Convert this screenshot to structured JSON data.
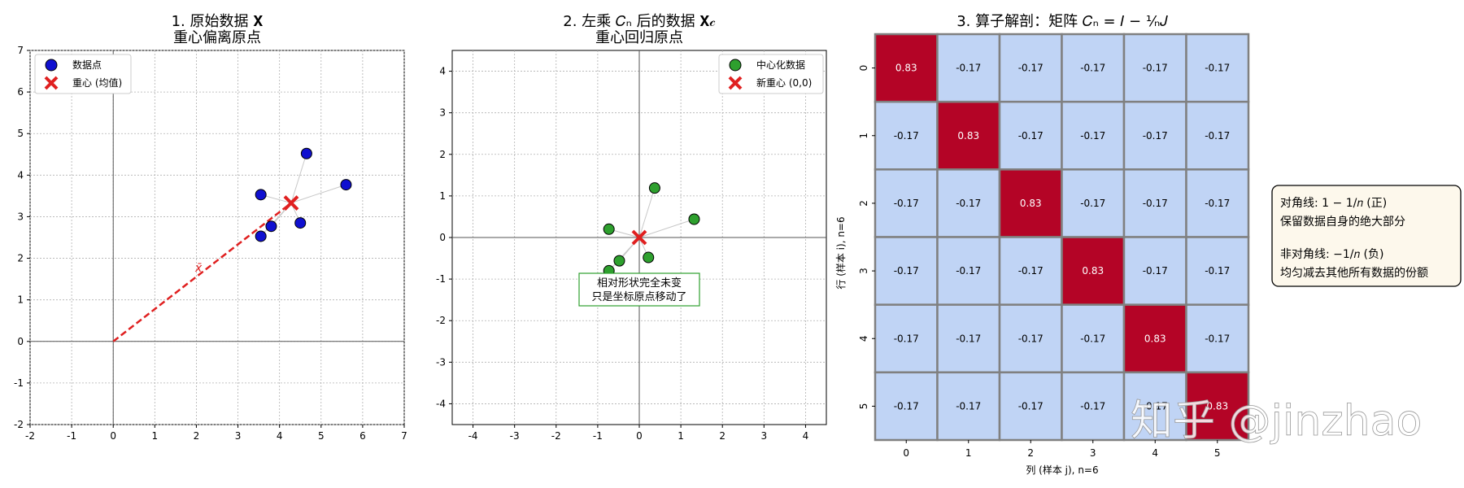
{
  "chart_data": [
    {
      "type": "scatter",
      "title_line1": "1. 原始数据 𝐗",
      "title_line2": "重心偏离原点",
      "xlim": [
        -2,
        7
      ],
      "ylim": [
        -2,
        7
      ],
      "xticks": [
        -2,
        -1,
        0,
        1,
        2,
        3,
        4,
        5,
        6,
        7
      ],
      "yticks": [
        -2,
        -1,
        0,
        1,
        2,
        3,
        4,
        5,
        6,
        7
      ],
      "grid": true,
      "legend_position": "top-left",
      "series": [
        {
          "name": "数据点",
          "color": "#1010d0",
          "x": [
            4.65,
            5.6,
            3.55,
            3.8,
            4.5,
            3.55
          ],
          "y": [
            4.52,
            3.77,
            3.53,
            2.77,
            2.85,
            2.53
          ]
        }
      ],
      "centroid": {
        "name": "重心 (均值)",
        "x": 4.28,
        "y": 3.33,
        "color": "#e02020"
      },
      "annotation": "x̄"
    },
    {
      "type": "scatter",
      "title_line1": "2. 左乘 𝐶ₙ 后的数据 𝐗𝒸",
      "title_line2": "重心回归原点",
      "xlim": [
        -4.5,
        4.5
      ],
      "ylim": [
        -4.5,
        4.5
      ],
      "xticks": [
        -4,
        -3,
        -2,
        -1,
        0,
        1,
        2,
        3,
        4
      ],
      "yticks": [
        -4,
        -3,
        -2,
        -1,
        0,
        1,
        2,
        3,
        4
      ],
      "grid": true,
      "legend_position": "top-right",
      "series": [
        {
          "name": "中心化数据",
          "color": "#2ea02e",
          "x": [
            0.37,
            1.32,
            -0.73,
            -0.48,
            0.22,
            -0.73
          ],
          "y": [
            1.19,
            0.44,
            0.2,
            -0.56,
            -0.48,
            -0.8
          ]
        }
      ],
      "centroid": {
        "name": "新重心 (0,0)",
        "x": 0,
        "y": 0,
        "color": "#e02020"
      },
      "annotation": [
        "相对形状完全未变",
        "只是坐标原点移动了"
      ]
    },
    {
      "type": "heatmap",
      "title": "3. 算子解剖：矩阵 𝐶ₙ = 𝐼 − ¹⁄ₙ𝐽",
      "rows": [
        0,
        1,
        2,
        3,
        4,
        5
      ],
      "cols": [
        0,
        1,
        2,
        3,
        4,
        5
      ],
      "xlabel": "列 (样本 j), n=6",
      "ylabel": "行 (样本 i), n=6",
      "values": [
        [
          0.83,
          -0.17,
          -0.17,
          -0.17,
          -0.17,
          -0.17
        ],
        [
          -0.17,
          0.83,
          -0.17,
          -0.17,
          -0.17,
          -0.17
        ],
        [
          -0.17,
          -0.17,
          0.83,
          -0.17,
          -0.17,
          -0.17
        ],
        [
          -0.17,
          -0.17,
          -0.17,
          0.83,
          -0.17,
          -0.17
        ],
        [
          -0.17,
          -0.17,
          -0.17,
          -0.17,
          0.83,
          -0.17
        ],
        [
          -0.17,
          -0.17,
          -0.17,
          -0.17,
          -0.17,
          0.83
        ]
      ],
      "labels": [
        [
          "0.83",
          "-0.17",
          "-0.17",
          "-0.17",
          "-0.17",
          "-0.17"
        ],
        [
          "-0.17",
          "0.83",
          "-0.17",
          "-0.17",
          "-0.17",
          "-0.17"
        ],
        [
          "-0.17",
          "-0.17",
          "0.83",
          "-0.17",
          "-0.17",
          "-0.17"
        ],
        [
          "-0.17",
          "-0.17",
          "-0.17",
          "0.83",
          "-0.17",
          "-0.17"
        ],
        [
          "-0.17",
          "-0.17",
          "-0.17",
          "-0.17",
          "0.83",
          "-0.17"
        ],
        [
          "-0.17",
          "-0.17",
          "-0.17",
          "-0.17",
          "-0.17",
          "0.83"
        ]
      ],
      "colors": {
        "positive": "#b40426",
        "negative": "#c0d4f5",
        "border": "#808080"
      },
      "note": {
        "line1": "对角线: 1 − 1/𝑛 (正)",
        "line2": "保留数据自身的绝大部分",
        "line3": "非对角线: −1/𝑛 (负)",
        "line4": "均匀减去其他所有数据的份额"
      }
    }
  ],
  "watermark": "知乎 @jinzhao"
}
